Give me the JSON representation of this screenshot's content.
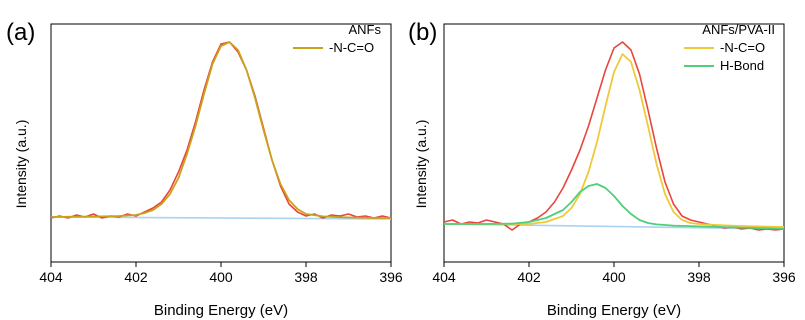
{
  "chart_data": [
    {
      "type": "line",
      "panel_label": "(a)",
      "xlabel": "Binding Energy (eV)",
      "ylabel": "Intensity (a.u.)",
      "xlim": [
        404,
        396
      ],
      "ylim": [
        0,
        1.0
      ],
      "x_reversed": true,
      "x_ticks": [
        404,
        402,
        400,
        398,
        396
      ],
      "y_ticks_shown": false,
      "grid": false,
      "legend_position": "top-right",
      "legend_title": "ANFs",
      "series": [
        {
          "name": "",
          "role": "raw",
          "color": "#e8463c",
          "x": [
            404.0,
            403.8,
            403.6,
            403.4,
            403.2,
            403.0,
            402.8,
            402.6,
            402.4,
            402.2,
            402.0,
            401.8,
            401.6,
            401.4,
            401.2,
            401.0,
            400.8,
            400.6,
            400.4,
            400.2,
            400.0,
            399.8,
            399.6,
            399.4,
            399.2,
            399.0,
            398.8,
            398.6,
            398.4,
            398.2,
            398.0,
            397.8,
            397.6,
            397.4,
            397.2,
            397.0,
            396.8,
            396.6,
            396.4,
            396.2,
            396.0
          ],
          "values": [
            0.12,
            0.13,
            0.12,
            0.135,
            0.125,
            0.14,
            0.12,
            0.13,
            0.125,
            0.14,
            0.13,
            0.15,
            0.17,
            0.2,
            0.26,
            0.35,
            0.46,
            0.6,
            0.76,
            0.9,
            0.99,
            1.0,
            0.95,
            0.86,
            0.73,
            0.57,
            0.41,
            0.28,
            0.19,
            0.15,
            0.13,
            0.14,
            0.12,
            0.135,
            0.13,
            0.14,
            0.125,
            0.13,
            0.12,
            0.13,
            0.12
          ]
        },
        {
          "name": "-N-C=O",
          "role": "fit",
          "color": "#c9a21a",
          "x": [
            404.0,
            403.6,
            403.2,
            402.8,
            402.4,
            402.0,
            401.8,
            401.6,
            401.4,
            401.2,
            401.0,
            400.8,
            400.6,
            400.4,
            400.2,
            400.0,
            399.8,
            399.6,
            399.4,
            399.2,
            399.0,
            398.8,
            398.6,
            398.4,
            398.2,
            398.0,
            397.6,
            397.2,
            396.8,
            396.4,
            396.0
          ],
          "values": [
            0.125,
            0.126,
            0.127,
            0.128,
            0.13,
            0.135,
            0.145,
            0.16,
            0.19,
            0.24,
            0.32,
            0.44,
            0.58,
            0.74,
            0.89,
            0.98,
            1.0,
            0.96,
            0.86,
            0.72,
            0.56,
            0.41,
            0.29,
            0.21,
            0.165,
            0.14,
            0.128,
            0.124,
            0.122,
            0.12,
            0.12
          ]
        },
        {
          "name": "",
          "role": "baseline",
          "color": "#a9d3f0",
          "x": [
            404.0,
            396.0
          ],
          "values": [
            0.125,
            0.115
          ]
        }
      ]
    },
    {
      "type": "line",
      "panel_label": "(b)",
      "xlabel": "Binding Energy (eV)",
      "ylabel": "Intensity (a.u.)",
      "xlim": [
        404,
        396
      ],
      "ylim": [
        0,
        1.0
      ],
      "x_reversed": true,
      "x_ticks": [
        404,
        402,
        400,
        398,
        396
      ],
      "y_ticks_shown": false,
      "grid": false,
      "legend_position": "top-right",
      "legend_title": "ANFs/PVA-II",
      "series": [
        {
          "name": "",
          "role": "raw",
          "color": "#e8463c",
          "x": [
            404.0,
            403.8,
            403.6,
            403.4,
            403.2,
            403.0,
            402.8,
            402.6,
            402.4,
            402.2,
            402.0,
            401.8,
            401.6,
            401.4,
            401.2,
            401.0,
            400.8,
            400.6,
            400.4,
            400.2,
            400.0,
            399.8,
            399.6,
            399.4,
            399.2,
            399.0,
            398.8,
            398.6,
            398.4,
            398.2,
            398.0,
            397.8,
            397.6,
            397.4,
            397.2,
            397.0,
            396.8,
            396.6,
            396.4,
            396.2,
            396.0
          ],
          "values": [
            0.1,
            0.11,
            0.09,
            0.1,
            0.095,
            0.11,
            0.1,
            0.09,
            0.06,
            0.09,
            0.1,
            0.12,
            0.15,
            0.2,
            0.27,
            0.36,
            0.46,
            0.58,
            0.72,
            0.86,
            0.97,
            1.0,
            0.96,
            0.84,
            0.66,
            0.47,
            0.3,
            0.19,
            0.13,
            0.11,
            0.1,
            0.09,
            0.08,
            0.07,
            0.075,
            0.065,
            0.07,
            0.06,
            0.065,
            0.06,
            0.065
          ]
        },
        {
          "name": "-N-C=O",
          "role": "fit",
          "color": "#f0c93a",
          "x": [
            404.0,
            403.0,
            402.0,
            401.6,
            401.2,
            401.0,
            400.8,
            400.6,
            400.4,
            400.2,
            400.0,
            399.8,
            399.6,
            399.4,
            399.2,
            399.0,
            398.8,
            398.6,
            398.4,
            398.2,
            398.0,
            397.6,
            397.0,
            396.0
          ],
          "values": [
            0.09,
            0.09,
            0.09,
            0.1,
            0.13,
            0.17,
            0.24,
            0.35,
            0.5,
            0.68,
            0.85,
            0.94,
            0.9,
            0.76,
            0.58,
            0.39,
            0.24,
            0.15,
            0.11,
            0.095,
            0.09,
            0.085,
            0.08,
            0.075
          ]
        },
        {
          "name": "H-Bond",
          "role": "fit",
          "color": "#4fcf7a",
          "x": [
            404.0,
            403.0,
            402.4,
            402.0,
            401.6,
            401.2,
            401.0,
            400.8,
            400.6,
            400.4,
            400.2,
            400.0,
            399.8,
            399.6,
            399.4,
            399.2,
            399.0,
            398.6,
            398.0,
            397.0,
            396.0
          ],
          "values": [
            0.09,
            0.09,
            0.092,
            0.1,
            0.12,
            0.16,
            0.2,
            0.25,
            0.28,
            0.29,
            0.27,
            0.23,
            0.18,
            0.14,
            0.11,
            0.095,
            0.088,
            0.082,
            0.078,
            0.072,
            0.066
          ]
        },
        {
          "name": "",
          "role": "baseline",
          "color": "#a9d3f0",
          "x": [
            404.0,
            396.0
          ],
          "values": [
            0.09,
            0.065
          ]
        }
      ]
    }
  ]
}
